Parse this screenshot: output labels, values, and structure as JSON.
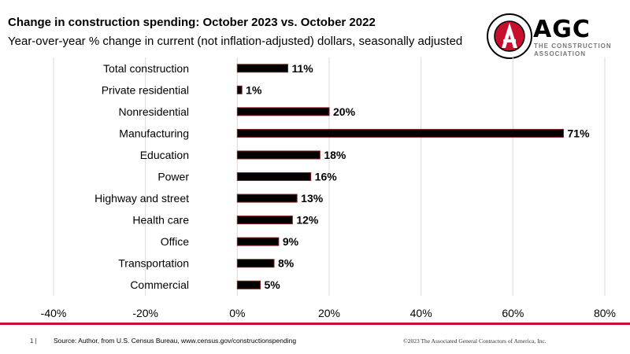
{
  "chart_data": {
    "type": "bar",
    "orientation": "horizontal",
    "title": "Change in construction spending: October 2023 vs. October 2022",
    "subtitle": "Year-over-year % change in current (not inflation-adjusted) dollars, seasonally adjusted",
    "categories": [
      "Total construction",
      "Private residential",
      "Nonresidential",
      "Manufacturing",
      "Education",
      "Power",
      "Highway and street",
      "Health care",
      "Office",
      "Transportation",
      "Commercial"
    ],
    "values": [
      11,
      1,
      20,
      71,
      18,
      16,
      13,
      12,
      9,
      8,
      5
    ],
    "data_labels": [
      "11%",
      "1%",
      "20%",
      "71%",
      "18%",
      "16%",
      "13%",
      "12%",
      "9%",
      "8%",
      "5%"
    ],
    "xlim": [
      -40,
      80
    ],
    "xticks": [
      -40,
      -20,
      0,
      20,
      40,
      60,
      80
    ],
    "xtick_labels": [
      "-40%",
      "-20%",
      "0%",
      "20%",
      "40%",
      "60%",
      "80%"
    ],
    "xlabel": "",
    "ylabel": "",
    "grid": "vertical",
    "legend": "none",
    "colors": {
      "bar_fill": "#000000",
      "bar_edge": "#8b1a1a",
      "grid": "#d9d9d9"
    }
  },
  "logo": {
    "name": "AGC",
    "tagline_line1": "THE CONSTRUCTION",
    "tagline_line2": "ASSOCIATION",
    "accent": "#c8102e"
  },
  "footer": {
    "page": "1 |",
    "source": "Source: Author, from U.S. Census Bureau, www.census.gov/constructionspending",
    "copyright": "©2023 The Associated General Contractors of America, Inc.",
    "rule_color": "#c8102e"
  }
}
